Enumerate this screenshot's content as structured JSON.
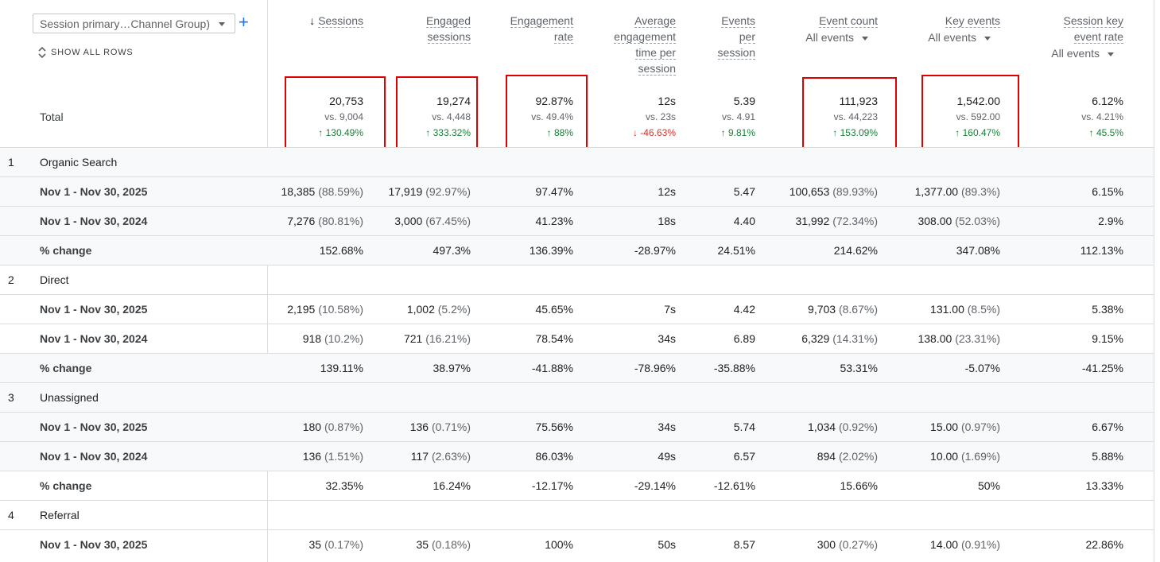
{
  "dimension": {
    "selector_label": "Session primary…Channel Group)",
    "add_label": "+",
    "show_all_rows": "SHOW ALL ROWS",
    "total_label": "Total"
  },
  "metrics": [
    {
      "lines": [
        "Sessions"
      ],
      "sorted": true,
      "sort_glyph": "↓",
      "event_filter": null,
      "total": "20,753",
      "vs": "vs. 9,004",
      "change": "130.49%",
      "change_dir": "up",
      "highlighted": true
    },
    {
      "lines": [
        "Engaged",
        "sessions"
      ],
      "sorted": false,
      "event_filter": null,
      "total": "19,274",
      "vs": "vs. 4,448",
      "change": "333.32%",
      "change_dir": "up",
      "highlighted": true
    },
    {
      "lines": [
        "Engagement",
        "rate"
      ],
      "sorted": false,
      "event_filter": null,
      "total": "92.87%",
      "vs": "vs. 49.4%",
      "change": "88%",
      "change_dir": "up",
      "highlighted": true
    },
    {
      "lines": [
        "Average",
        "engagement",
        "time per",
        "session"
      ],
      "sorted": false,
      "event_filter": null,
      "total": "12s",
      "vs": "vs. 23s",
      "change": "-46.63%",
      "change_dir": "down",
      "highlighted": false
    },
    {
      "lines": [
        "Events",
        "per",
        "session"
      ],
      "sorted": false,
      "event_filter": null,
      "total": "5.39",
      "vs": "vs. 4.91",
      "change": "9.81%",
      "change_dir": "up",
      "highlighted": false
    },
    {
      "lines": [
        "Event count"
      ],
      "sorted": false,
      "event_filter": "All events",
      "total": "111,923",
      "vs": "vs. 44,223",
      "change": "153.09%",
      "change_dir": "up",
      "highlighted": true
    },
    {
      "lines": [
        "Key events"
      ],
      "sorted": false,
      "event_filter": "All events",
      "total": "1,542.00",
      "vs": "vs. 592.00",
      "change": "160.47%",
      "change_dir": "up",
      "highlighted": true
    },
    {
      "lines": [
        "Session key",
        "event rate"
      ],
      "sorted": false,
      "event_filter": "All events",
      "total": "6.12%",
      "vs": "vs. 4.21%",
      "change": "45.5%",
      "change_dir": "up",
      "highlighted": false
    }
  ],
  "rows": [
    {
      "kind": "group",
      "num": "1",
      "label": "Organic Search"
    },
    {
      "kind": "data",
      "label": "Nov 1 - Nov 30, 2025",
      "cells": [
        [
          "18,385",
          "(88.59%)"
        ],
        [
          "17,919",
          "(92.97%)"
        ],
        [
          "97.47%",
          ""
        ],
        [
          "12s",
          ""
        ],
        [
          "5.47",
          ""
        ],
        [
          "100,653",
          "(89.93%)"
        ],
        [
          "1,377.00",
          "(89.3%)"
        ],
        [
          "6.15%",
          ""
        ]
      ]
    },
    {
      "kind": "data",
      "label": "Nov 1 - Nov 30, 2024",
      "cells": [
        [
          "7,276",
          "(80.81%)"
        ],
        [
          "3,000",
          "(67.45%)"
        ],
        [
          "41.23%",
          ""
        ],
        [
          "18s",
          ""
        ],
        [
          "4.40",
          ""
        ],
        [
          "31,992",
          "(72.34%)"
        ],
        [
          "308.00",
          "(52.03%)"
        ],
        [
          "2.9%",
          ""
        ]
      ]
    },
    {
      "kind": "data",
      "label": "% change",
      "cells": [
        [
          "152.68%",
          ""
        ],
        [
          "497.3%",
          ""
        ],
        [
          "136.39%",
          ""
        ],
        [
          "-28.97%",
          ""
        ],
        [
          "24.51%",
          ""
        ],
        [
          "214.62%",
          ""
        ],
        [
          "347.08%",
          ""
        ],
        [
          "112.13%",
          ""
        ]
      ]
    },
    {
      "kind": "group",
      "num": "2",
      "label": "Direct"
    },
    {
      "kind": "data",
      "label": "Nov 1 - Nov 30, 2025",
      "cells": [
        [
          "2,195",
          "(10.58%)"
        ],
        [
          "1,002",
          "(5.2%)"
        ],
        [
          "45.65%",
          ""
        ],
        [
          "7s",
          ""
        ],
        [
          "4.42",
          ""
        ],
        [
          "9,703",
          "(8.67%)"
        ],
        [
          "131.00",
          "(8.5%)"
        ],
        [
          "5.38%",
          ""
        ]
      ]
    },
    {
      "kind": "data",
      "label": "Nov 1 - Nov 30, 2024",
      "cells": [
        [
          "918",
          "(10.2%)"
        ],
        [
          "721",
          "(16.21%)"
        ],
        [
          "78.54%",
          ""
        ],
        [
          "34s",
          ""
        ],
        [
          "6.89",
          ""
        ],
        [
          "6,329",
          "(14.31%)"
        ],
        [
          "138.00",
          "(23.31%)"
        ],
        [
          "9.15%",
          ""
        ]
      ]
    },
    {
      "kind": "data",
      "label": "% change",
      "cells": [
        [
          "139.11%",
          ""
        ],
        [
          "38.97%",
          ""
        ],
        [
          "-41.88%",
          ""
        ],
        [
          "-78.96%",
          ""
        ],
        [
          "-35.88%",
          ""
        ],
        [
          "53.31%",
          ""
        ],
        [
          "-5.07%",
          ""
        ],
        [
          "-41.25%",
          ""
        ]
      ]
    },
    {
      "kind": "group",
      "num": "3",
      "label": "Unassigned"
    },
    {
      "kind": "data",
      "label": "Nov 1 - Nov 30, 2025",
      "cells": [
        [
          "180",
          "(0.87%)"
        ],
        [
          "136",
          "(0.71%)"
        ],
        [
          "75.56%",
          ""
        ],
        [
          "34s",
          ""
        ],
        [
          "5.74",
          ""
        ],
        [
          "1,034",
          "(0.92%)"
        ],
        [
          "15.00",
          "(0.97%)"
        ],
        [
          "6.67%",
          ""
        ]
      ]
    },
    {
      "kind": "data",
      "label": "Nov 1 - Nov 30, 2024",
      "cells": [
        [
          "136",
          "(1.51%)"
        ],
        [
          "117",
          "(2.63%)"
        ],
        [
          "86.03%",
          ""
        ],
        [
          "49s",
          ""
        ],
        [
          "6.57",
          ""
        ],
        [
          "894",
          "(2.02%)"
        ],
        [
          "10.00",
          "(1.69%)"
        ],
        [
          "5.88%",
          ""
        ]
      ]
    },
    {
      "kind": "data",
      "label": "% change",
      "cells": [
        [
          "32.35%",
          ""
        ],
        [
          "16.24%",
          ""
        ],
        [
          "-12.17%",
          ""
        ],
        [
          "-29.14%",
          ""
        ],
        [
          "-12.61%",
          ""
        ],
        [
          "15.66%",
          ""
        ],
        [
          "50%",
          ""
        ],
        [
          "13.33%",
          ""
        ]
      ]
    },
    {
      "kind": "group",
      "num": "4",
      "label": "Referral"
    },
    {
      "kind": "data",
      "label": "Nov 1 - Nov 30, 2025",
      "cells": [
        [
          "35",
          "(0.17%)"
        ],
        [
          "35",
          "(0.18%)"
        ],
        [
          "100%",
          ""
        ],
        [
          "50s",
          ""
        ],
        [
          "8.57",
          ""
        ],
        [
          "300",
          "(0.27%)"
        ],
        [
          "14.00",
          "(0.91%)"
        ],
        [
          "22.86%",
          ""
        ]
      ]
    }
  ],
  "colors": {
    "highlight": "#e00000",
    "up": "#188038",
    "down": "#d93025",
    "grey_row": "#f8f9fa",
    "accent": "#1a73e8"
  },
  "icons": {
    "sort": "arrow-down-icon",
    "show_all": "unfold-icon",
    "dropdown": "caret-down-icon"
  }
}
